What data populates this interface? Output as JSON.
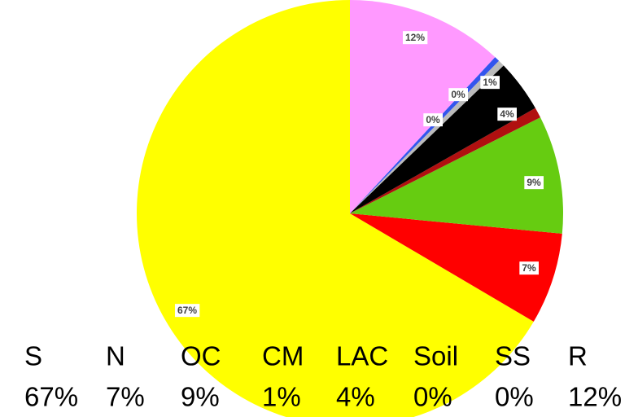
{
  "chart_data": {
    "type": "pie",
    "categories": [
      "S",
      "N",
      "OC",
      "CM",
      "LAC",
      "Soil",
      "SS",
      "R"
    ],
    "values": [
      67,
      7,
      9,
      0.8,
      4,
      0.5,
      0.4,
      12
    ],
    "value_labels": [
      "67%",
      "7%",
      "9%",
      "1%",
      "4%",
      "0%",
      "0%",
      "12%"
    ],
    "colors": [
      "#ffff00",
      "#ff0000",
      "#66cc11",
      "#b01010",
      "#000000",
      "#bbbbbb",
      "#3355ee",
      "#ff99ff"
    ]
  }
}
